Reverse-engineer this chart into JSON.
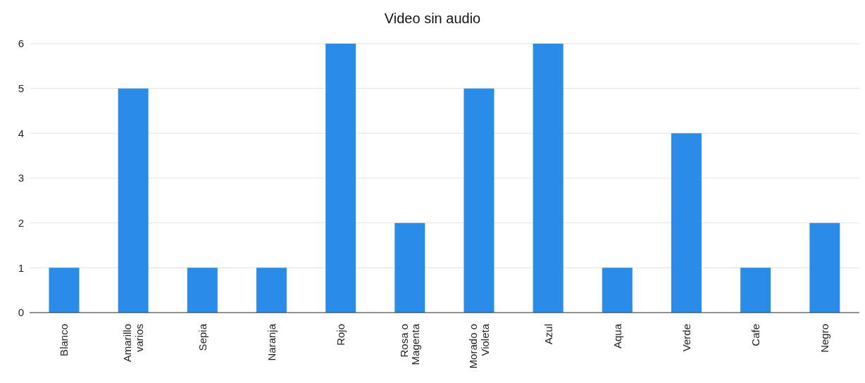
{
  "chart_data": {
    "type": "bar",
    "title": "Video sin audio",
    "categories": [
      "Blanco",
      "Amarillo varios",
      "Sepia",
      "Naranja",
      "Rojo",
      "Rosa o Magenta",
      "Morado o Violeta",
      "Azul",
      "Aqua",
      "Verde",
      "Cafe",
      "Negro"
    ],
    "values": [
      1,
      5,
      1,
      1,
      6,
      2,
      5,
      6,
      1,
      4,
      1,
      2
    ],
    "color": "#2b8ce8",
    "ylim": [
      0,
      6
    ],
    "yticks": [
      0,
      1,
      2,
      3,
      4,
      5,
      6
    ],
    "grid": "y",
    "legend": false
  }
}
